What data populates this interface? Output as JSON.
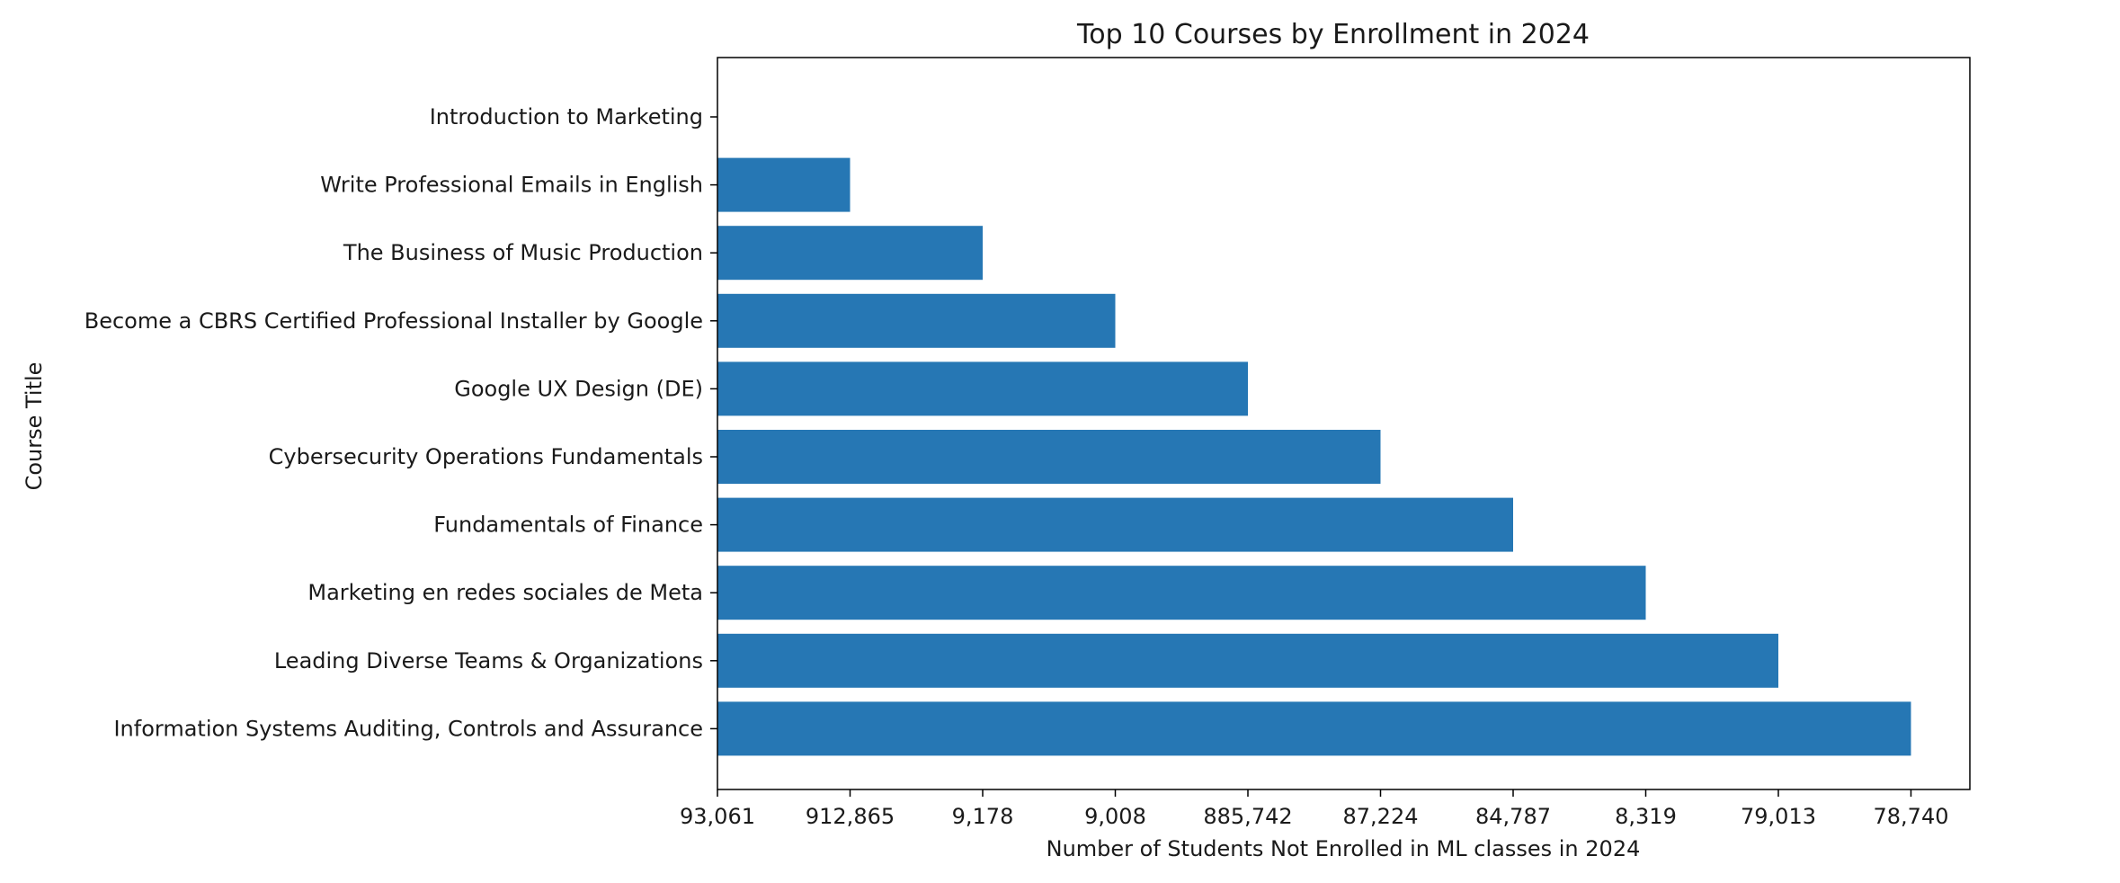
{
  "chart_data": {
    "type": "bar",
    "orientation": "horizontal",
    "title": "Top 10 Courses by Enrollment in 2024",
    "xlabel": "Number of Students Not Enrolled in ML classes in 2024",
    "ylabel": "Course Title",
    "categories": [
      "Introduction to Marketing",
      "Write Professional Emails in English",
      "The Business of Music Production",
      "Become a CBRS Certified Professional Installer by Google",
      "Google UX Design (DE)",
      "Cybersecurity Operations Fundamentals",
      "Fundamentals of Finance",
      "Marketing en redes sociales de Meta",
      "Leading Diverse Teams & Organizations",
      "Information Systems Auditing, Controls and Assurance"
    ],
    "x_tick_labels": [
      "93,061",
      "912,865",
      "9,178",
      "9,008",
      "885,742",
      "87,224",
      "84,787",
      "8,319",
      "79,013",
      "78,740"
    ],
    "values": [
      "93,061",
      "912,865",
      "9,178",
      "9,008",
      "885,742",
      "87,224",
      "84,787",
      "8,319",
      "79,013",
      "78,740"
    ],
    "x_scale": "categorical",
    "color": "#2677b4",
    "grid": false,
    "legend": "none"
  }
}
